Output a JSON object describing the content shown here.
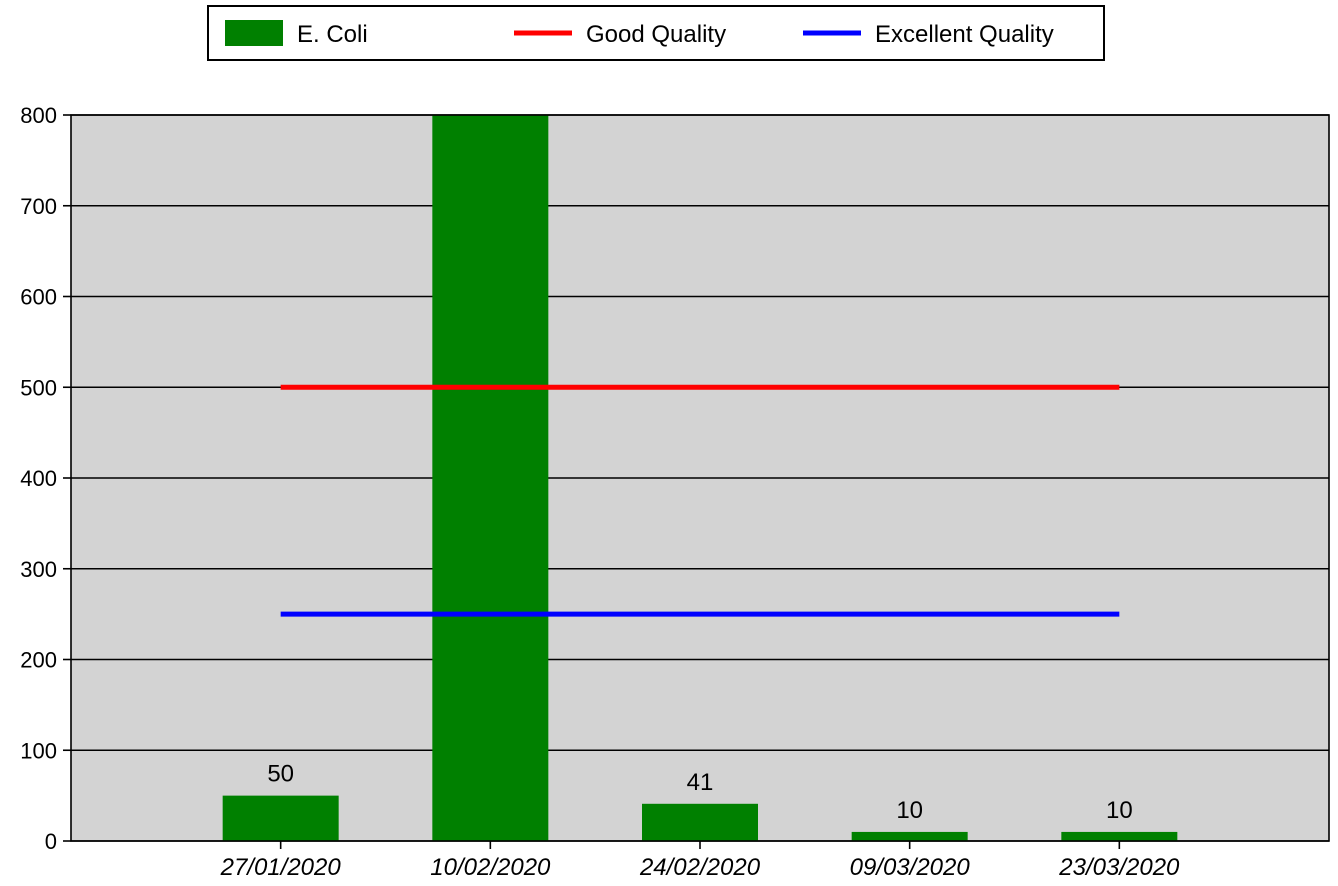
{
  "chart_data": {
    "type": "bar",
    "title": "",
    "xlabel": "",
    "ylabel": "",
    "categories": [
      "27/01/2020",
      "10/02/2020",
      "24/02/2020",
      "09/03/2020",
      "23/03/2020"
    ],
    "series": [
      {
        "name": "E. Coli",
        "type": "bar",
        "color": "#008000",
        "values": [
          50,
          800,
          41,
          10,
          10
        ],
        "labels": [
          "50",
          "",
          "41",
          "10",
          "10"
        ]
      },
      {
        "name": "Good Quality",
        "type": "line",
        "color": "#ff0000",
        "values": [
          500,
          500,
          500,
          500,
          500
        ]
      },
      {
        "name": "Excellent Quality",
        "type": "line",
        "color": "#0000ff",
        "values": [
          250,
          250,
          250,
          250,
          250
        ]
      }
    ],
    "ylim": [
      0,
      800
    ],
    "yticks": [
      0,
      100,
      200,
      300,
      400,
      500,
      600,
      700,
      800
    ],
    "grid": true,
    "legend": "top-center",
    "plot_background": "#d3d3d3"
  }
}
